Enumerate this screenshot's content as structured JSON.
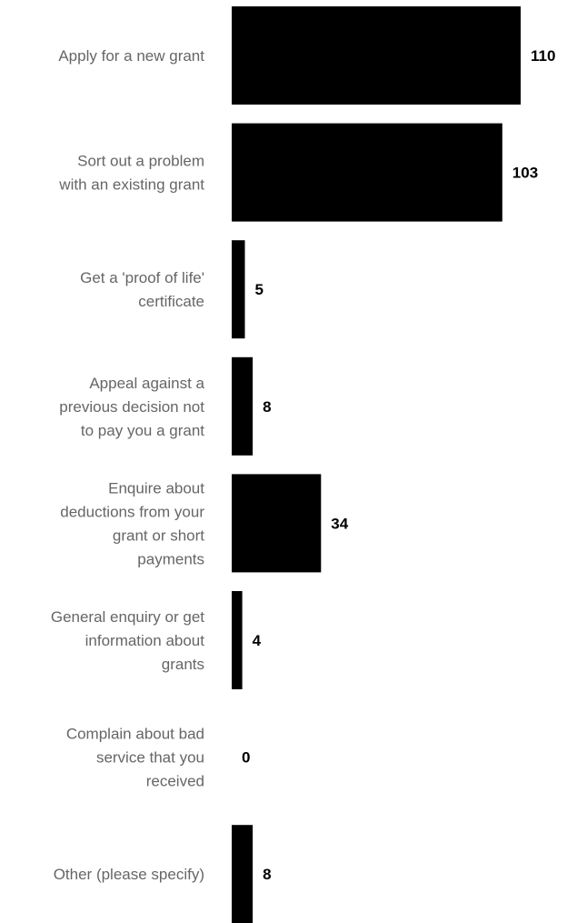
{
  "chart_data": {
    "type": "bar",
    "orientation": "horizontal",
    "categories": [
      "Apply for a new grant",
      "Sort out a problem with an existing grant",
      "Get a 'proof of life' certificate",
      "Appeal against a previous decision not to pay you a grant",
      "Enquire about deductions from your grant or short payments",
      "General enquiry or get information about grants",
      "Complain about bad service that you received",
      "Other (please specify)"
    ],
    "category_lines": [
      [
        "Apply for a new grant"
      ],
      [
        "Sort out a problem",
        "with an existing grant"
      ],
      [
        "Get a 'proof of life'",
        "certificate"
      ],
      [
        "Appeal against a",
        "previous decision not",
        "to pay you a grant"
      ],
      [
        "Enquire about",
        "deductions from your",
        "grant or short",
        "payments"
      ],
      [
        "General enquiry or get",
        "information about",
        "grants"
      ],
      [
        "Complain about bad",
        "service that you",
        "received"
      ],
      [
        "Other (please specify)"
      ]
    ],
    "values": [
      110,
      103,
      5,
      8,
      34,
      4,
      0,
      8
    ],
    "value_labels": [
      "110",
      "103",
      "5",
      "8",
      "34",
      "4",
      "0",
      "8"
    ],
    "xlim": [
      0,
      110
    ],
    "grid": false,
    "legend": "none",
    "bar_color": "#000000",
    "category_label_color": "#666666",
    "value_label_color": "#000000"
  }
}
